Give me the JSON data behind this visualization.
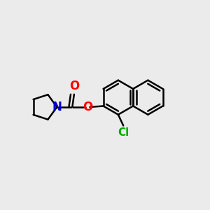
{
  "bg_color": "#ebebeb",
  "bond_color": "#000000",
  "bond_width": 1.8,
  "atom_colors": {
    "O": "#ff0000",
    "N": "#0000cc",
    "Cl": "#00aa00"
  },
  "font_size": 11,
  "fig_size": [
    3.0,
    3.0
  ],
  "dpi": 100,
  "xlim": [
    -2.8,
    3.2
  ],
  "ylim": [
    -1.8,
    1.8
  ]
}
